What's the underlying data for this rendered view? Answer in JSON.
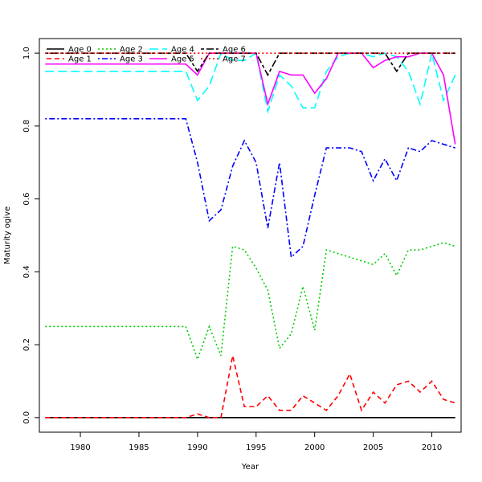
{
  "chart_data": {
    "type": "line",
    "title": "",
    "xlabel": "Year",
    "ylabel": "Maturity ogive",
    "xlim": [
      1976.5,
      2012.5
    ],
    "ylim": [
      -0.04,
      1.04
    ],
    "x_ticks": [
      1980,
      1985,
      1990,
      1995,
      2000,
      2005,
      2010
    ],
    "y_ticks": [
      0.0,
      0.2,
      0.4,
      0.6,
      0.8,
      1.0
    ],
    "y_tick_labels": [
      "0.0",
      "0.2",
      "0.4",
      "0.6",
      "0.8",
      "1.0"
    ],
    "grid": false,
    "legend_position": "top-left",
    "x": [
      1977,
      1978,
      1979,
      1980,
      1981,
      1982,
      1983,
      1984,
      1985,
      1986,
      1987,
      1988,
      1989,
      1990,
      1991,
      1992,
      1993,
      1994,
      1995,
      1996,
      1997,
      1998,
      1999,
      2000,
      2001,
      2002,
      2003,
      2004,
      2005,
      2006,
      2007,
      2008,
      2009,
      2010,
      2011,
      2012
    ],
    "series": [
      {
        "name": "Age 0",
        "color": "#000000",
        "dash": "solid",
        "values": [
          0,
          0,
          0,
          0,
          0,
          0,
          0,
          0,
          0,
          0,
          0,
          0,
          0,
          0,
          0,
          0,
          0,
          0,
          0,
          0,
          0,
          0,
          0,
          0,
          0,
          0,
          0,
          0,
          0,
          0,
          0,
          0,
          0,
          0,
          0,
          0
        ]
      },
      {
        "name": "Age 1",
        "color": "#ff0000",
        "dash": "dashed",
        "values": [
          0,
          0,
          0,
          0,
          0,
          0,
          0,
          0,
          0,
          0,
          0,
          0,
          0,
          0.01,
          0,
          0,
          0.17,
          0.03,
          0.03,
          0.06,
          0.02,
          0.02,
          0.06,
          0.04,
          0.02,
          0.06,
          0.12,
          0.02,
          0.07,
          0.04,
          0.09,
          0.1,
          0.07,
          0.1,
          0.05,
          0.04
        ]
      },
      {
        "name": "Age 2",
        "color": "#00cd00",
        "dash": "dotted",
        "values": [
          0.25,
          0.25,
          0.25,
          0.25,
          0.25,
          0.25,
          0.25,
          0.25,
          0.25,
          0.25,
          0.25,
          0.25,
          0.25,
          0.16,
          0.25,
          0.17,
          0.47,
          0.46,
          0.41,
          0.35,
          0.19,
          0.23,
          0.36,
          0.24,
          0.46,
          0.45,
          0.44,
          0.43,
          0.42,
          0.45,
          0.39,
          0.46,
          0.46,
          0.47,
          0.48,
          0.47
        ]
      },
      {
        "name": "Age 3",
        "color": "#0000ff",
        "dash": "dotdash",
        "values": [
          0.82,
          0.82,
          0.82,
          0.82,
          0.82,
          0.82,
          0.82,
          0.82,
          0.82,
          0.82,
          0.82,
          0.82,
          0.82,
          0.7,
          0.54,
          0.57,
          0.69,
          0.76,
          0.7,
          0.52,
          0.7,
          0.44,
          0.47,
          0.61,
          0.74,
          0.74,
          0.74,
          0.73,
          0.65,
          0.71,
          0.65,
          0.74,
          0.73,
          0.76,
          0.75,
          0.74
        ]
      },
      {
        "name": "Age 4",
        "color": "#00ffff",
        "dash": "longdash",
        "values": [
          0.95,
          0.95,
          0.95,
          0.95,
          0.95,
          0.95,
          0.95,
          0.95,
          0.95,
          0.95,
          0.95,
          0.95,
          0.95,
          0.87,
          0.91,
          1.0,
          0.98,
          0.98,
          1.0,
          0.84,
          0.94,
          0.91,
          0.85,
          0.85,
          0.95,
          0.99,
          1.0,
          1.0,
          0.99,
          1.0,
          0.99,
          0.95,
          0.86,
          1.0,
          0.87,
          0.94
        ]
      },
      {
        "name": "Age 5",
        "color": "#ff00ff",
        "dash": "solid",
        "values": [
          0.97,
          0.97,
          0.97,
          0.97,
          0.97,
          0.97,
          0.97,
          0.97,
          0.97,
          0.97,
          0.97,
          0.97,
          0.97,
          0.94,
          1.0,
          1.0,
          1.0,
          1.0,
          1.0,
          0.86,
          0.95,
          0.94,
          0.94,
          0.89,
          0.93,
          1.0,
          1.0,
          1.0,
          0.96,
          0.98,
          0.99,
          0.99,
          1.0,
          1.0,
          0.94,
          0.75
        ]
      },
      {
        "name": "Age 6",
        "color": "#000000",
        "dash": "twodash",
        "values": [
          1.0,
          1.0,
          1.0,
          1.0,
          1.0,
          1.0,
          1.0,
          1.0,
          1.0,
          1.0,
          1.0,
          1.0,
          1.0,
          0.95,
          1.0,
          1.0,
          1.0,
          1.0,
          1.0,
          0.94,
          1.0,
          1.0,
          1.0,
          1.0,
          1.0,
          1.0,
          1.0,
          1.0,
          1.0,
          1.0,
          0.95,
          1.0,
          1.0,
          1.0,
          1.0,
          1.0
        ]
      },
      {
        "name": "Age 7",
        "color": "#ff0000",
        "dash": "dotted",
        "values": [
          1.0,
          1.0,
          1.0,
          1.0,
          1.0,
          1.0,
          1.0,
          1.0,
          1.0,
          1.0,
          1.0,
          1.0,
          1.0,
          1.0,
          1.0,
          1.0,
          1.0,
          1.0,
          1.0,
          1.0,
          1.0,
          1.0,
          1.0,
          1.0,
          1.0,
          1.0,
          1.0,
          1.0,
          1.0,
          1.0,
          1.0,
          1.0,
          1.0,
          1.0,
          1.0,
          1.0
        ]
      }
    ]
  }
}
